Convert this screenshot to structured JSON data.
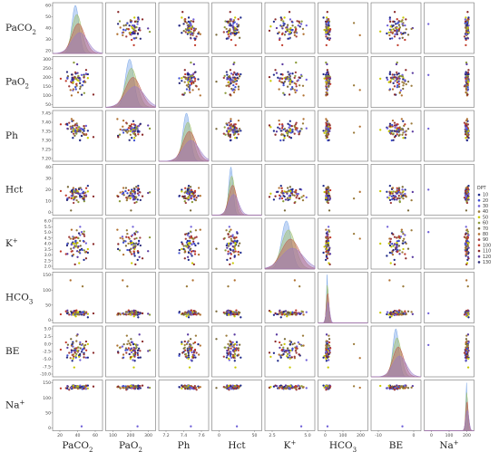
{
  "chart_data": {
    "type": "scatter",
    "variables": [
      {
        "key": "PaCO2",
        "label": "PaCO",
        "sub": "2",
        "sup": "",
        "range": [
          10,
          70
        ],
        "x_ticks": [
          "20",
          "40",
          "60"
        ],
        "y_ticks": [
          "60",
          "50",
          "40",
          "30",
          "20"
        ]
      },
      {
        "key": "PaO2",
        "label": "PaO",
        "sub": "2",
        "sup": "",
        "range": [
          0,
          320
        ],
        "x_ticks": [
          "100",
          "200",
          "300"
        ],
        "y_ticks": [
          "300",
          "250",
          "200",
          "150",
          "100",
          "50"
        ]
      },
      {
        "key": "Ph",
        "label": "Ph",
        "sub": "",
        "sup": "",
        "range": [
          7.05,
          7.55
        ],
        "x_ticks": [
          "7.2",
          "7.4",
          "7.6"
        ],
        "y_ticks": [
          "7.45",
          "7.40",
          "7.35",
          "7.30",
          "7.25",
          "7.20"
        ]
      },
      {
        "key": "Hct",
        "label": "Hct",
        "sub": "",
        "sup": "",
        "range": [
          -10,
          100
        ],
        "x_ticks": [
          "0",
          "50"
        ],
        "y_ticks": [
          "40",
          "30",
          "20",
          "10",
          "0"
        ]
      },
      {
        "key": "K",
        "label": "K",
        "sub": "",
        "sup": "+",
        "range": [
          1.5,
          7.0
        ],
        "x_ticks": [
          "2.5",
          "5.0"
        ],
        "y_ticks": [
          "6.0",
          "5.5",
          "5.0",
          "4.5",
          "4.0",
          "3.5",
          "3.0",
          "2.5",
          "2.0"
        ]
      },
      {
        "key": "HCO3",
        "label": "HCO",
        "sub": "3",
        "sup": "",
        "range": [
          -20,
          230
        ],
        "x_ticks": [
          "0",
          "100",
          "200"
        ],
        "y_ticks": [
          "150",
          "100",
          "50",
          "0"
        ]
      },
      {
        "key": "BE",
        "label": "BE",
        "sub": "",
        "sup": "",
        "range": [
          -20,
          10
        ],
        "x_ticks": [
          "-10",
          "0"
        ],
        "y_ticks": [
          "5.0",
          "2.5",
          "0.0",
          "-2.5",
          "-5.0",
          "-7.5",
          "-10.0"
        ]
      },
      {
        "key": "Na",
        "label": "Na",
        "sub": "",
        "sup": "+",
        "range": [
          -10,
          165
        ],
        "x_ticks": [
          "0",
          "100",
          "200"
        ],
        "y_ticks": [
          "150",
          "100",
          "50",
          "0"
        ]
      }
    ],
    "legend": {
      "title": "DPT",
      "placement": "right",
      "entries": [
        {
          "name": "10",
          "color": "#1f2a8a"
        },
        {
          "name": "20",
          "color": "#3f4fd0"
        },
        {
          "name": "30",
          "color": "#6f5fd8"
        },
        {
          "name": "40",
          "color": "#9a7a3a"
        },
        {
          "name": "50",
          "color": "#c8c800"
        },
        {
          "name": "60",
          "color": "#8b9a3a"
        },
        {
          "name": "70",
          "color": "#7a6a3a"
        },
        {
          "name": "80",
          "color": "#b07030"
        },
        {
          "name": "90",
          "color": "#a04040"
        },
        {
          "name": "100",
          "color": "#c03a2a"
        },
        {
          "name": "110",
          "color": "#8a2a2a"
        },
        {
          "name": "120",
          "color": "#5a3aa0"
        },
        {
          "name": "130",
          "color": "#2a2a7a"
        }
      ]
    },
    "kde_fill": [
      "#7aa7e8",
      "#9fc06a",
      "#c05a4a",
      "#9a7ac8"
    ],
    "points_per_panel": 70
  }
}
